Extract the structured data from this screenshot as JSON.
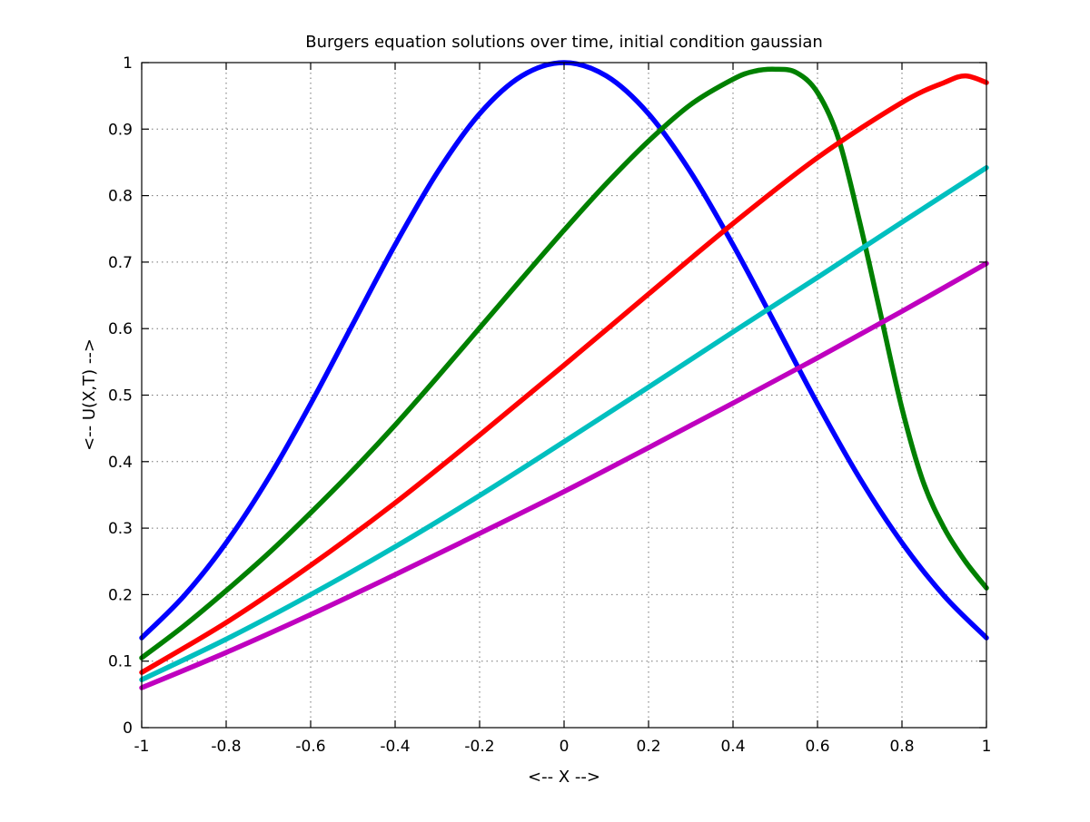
{
  "chart_data": {
    "type": "line",
    "title": "Burgers equation solutions over time, initial condition gaussian",
    "xlabel": "<-- X -->",
    "ylabel": "<-- U(X,T) -->",
    "xlim": [
      -1,
      1
    ],
    "ylim": [
      0,
      1
    ],
    "xticks": [
      "-1",
      "-0.8",
      "-0.6",
      "-0.4",
      "-0.2",
      "0",
      "0.2",
      "0.4",
      "0.6",
      "0.8",
      "1"
    ],
    "yticks": [
      "0",
      "0.1",
      "0.2",
      "0.3",
      "0.4",
      "0.5",
      "0.6",
      "0.7",
      "0.8",
      "0.9",
      "1"
    ],
    "grid": true,
    "legend": "none",
    "series": [
      {
        "color": "#0000ff",
        "x": [
          -1,
          -0.9,
          -0.8,
          -0.7,
          -0.6,
          -0.5,
          -0.4,
          -0.3,
          -0.2,
          -0.1,
          0,
          0.1,
          0.2,
          0.3,
          0.4,
          0.5,
          0.6,
          0.7,
          0.8,
          0.9,
          1
        ],
        "y": [
          0.135,
          0.198,
          0.278,
          0.375,
          0.487,
          0.607,
          0.726,
          0.835,
          0.923,
          0.98,
          1.0,
          0.98,
          0.923,
          0.835,
          0.726,
          0.607,
          0.487,
          0.375,
          0.278,
          0.198,
          0.135
        ]
      },
      {
        "color": "#008000",
        "x": [
          -1,
          -0.9,
          -0.8,
          -0.7,
          -0.6,
          -0.5,
          -0.4,
          -0.3,
          -0.2,
          -0.1,
          0,
          0.1,
          0.2,
          0.3,
          0.4,
          0.45,
          0.5,
          0.55,
          0.6,
          0.65,
          0.7,
          0.75,
          0.8,
          0.85,
          0.9,
          0.95,
          1
        ],
        "y": [
          0.105,
          0.153,
          0.206,
          0.262,
          0.323,
          0.387,
          0.455,
          0.527,
          0.601,
          0.675,
          0.748,
          0.818,
          0.882,
          0.937,
          0.975,
          0.987,
          0.99,
          0.985,
          0.955,
          0.885,
          0.76,
          0.62,
          0.48,
          0.37,
          0.3,
          0.25,
          0.21
        ]
      },
      {
        "color": "#ff0000",
        "x": [
          -1,
          -0.8,
          -0.6,
          -0.4,
          -0.2,
          0,
          0.2,
          0.4,
          0.6,
          0.8,
          0.9,
          0.95,
          1
        ],
        "y": [
          0.083,
          0.158,
          0.244,
          0.338,
          0.44,
          0.545,
          0.652,
          0.758,
          0.857,
          0.94,
          0.97,
          0.98,
          0.97
        ]
      },
      {
        "color": "#00bfbf",
        "x": [
          -1,
          -0.8,
          -0.6,
          -0.4,
          -0.2,
          0,
          0.2,
          0.4,
          0.6,
          0.8,
          1
        ],
        "y": [
          0.072,
          0.133,
          0.2,
          0.272,
          0.349,
          0.43,
          0.512,
          0.595,
          0.677,
          0.76,
          0.842
        ]
      },
      {
        "color": "#bf00bf",
        "x": [
          -1,
          -0.8,
          -0.6,
          -0.4,
          -0.2,
          0,
          0.2,
          0.4,
          0.6,
          0.8,
          1
        ],
        "y": [
          0.06,
          0.113,
          0.17,
          0.23,
          0.292,
          0.355,
          0.421,
          0.488,
          0.556,
          0.626,
          0.698
        ]
      }
    ]
  }
}
